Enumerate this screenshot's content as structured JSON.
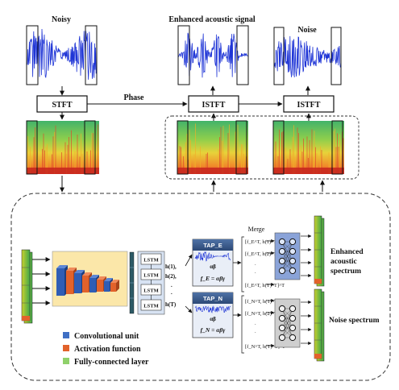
{
  "signals": {
    "noisy": "Noisy",
    "enhanced": "Enhanced acoustic signal",
    "noise": "Noise"
  },
  "blocks": {
    "stft": "STFT",
    "istft_left": "ISTFT",
    "istft_right": "ISTFT",
    "phase": "Phase"
  },
  "network": {
    "lstm": [
      "LSTM",
      "LSTM",
      "LSTM",
      "LSTM"
    ],
    "h_labels": [
      "h(1),",
      "h(2),",
      ".",
      ".",
      "h(T)"
    ],
    "tap_e": {
      "title": "TAP_E",
      "param": "αβ",
      "formula": "f_E = αβγ"
    },
    "tap_n": {
      "title": "TAP_N",
      "param": "αβ",
      "formula": "f_N = αβγ"
    },
    "merge": "Merge",
    "merge_e": [
      "[f_E^T, h(1)^T]^T",
      "[f_E^T, h(2)^T]^T",
      ".",
      ".",
      "[f_E^T, h(T)^T]^T"
    ],
    "merge_n": [
      "[f_N^T, h(1)^T]^T",
      "[f_N^T, h(2)^T]^T",
      ".",
      ".",
      "[f_N^T, h(T)^T]^T"
    ],
    "out_enhanced": [
      "Enhanced",
      "acoustic",
      "spectrum"
    ],
    "out_noise": "Noise spectrum"
  },
  "legend": [
    {
      "label": "Convolutional unit",
      "color": "#3f6fc4"
    },
    {
      "label": "Activation function",
      "color": "#e2622b"
    },
    {
      "label": "Fully-connected layer",
      "color": "#8fd16a"
    }
  ],
  "colors": {
    "waveform": "#1f35d6",
    "cnn_panel": "#fbe7a9",
    "tap_header": "#3a5b8a",
    "fc_enhanced": "#8aa3d8",
    "fc_noise": "#cfcfcf",
    "lstm_panel": "#d8e3f3"
  }
}
